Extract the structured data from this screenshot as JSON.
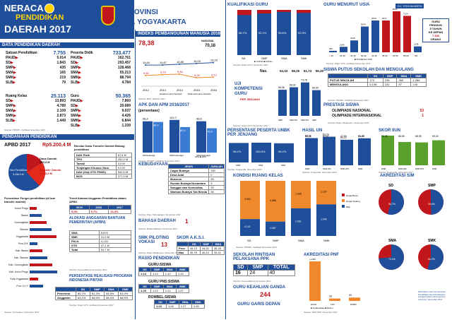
{
  "header": {
    "l1": "NERACA",
    "l2": "PENDIDIKAN",
    "l3": "DAERAH 2017",
    "prov_label": "PROVINSI",
    "prov_name": "D.I. YOGYAKARTA"
  },
  "data_pend": {
    "title": "DATA PENDIDIKAN DAERAH",
    "satuan": {
      "label": "Satuan Pendidikan",
      "total": "7.755",
      "rows": [
        [
          "PAUD",
          "5.014"
        ],
        [
          "SD",
          "1.843"
        ],
        [
          "SMP",
          "435"
        ],
        [
          "SMA",
          "165"
        ],
        [
          "SMK",
          "219"
        ],
        [
          "SLB",
          "79"
        ]
      ]
    },
    "peserta": {
      "label": "Peserta Didik",
      "total": "733.477",
      "rows": [
        [
          "PAUD",
          "162.761"
        ],
        [
          "SD",
          "293.457"
        ],
        [
          "SMP",
          "128.468"
        ],
        [
          "SMA",
          "55.213"
        ],
        [
          "SMK",
          "88.794"
        ],
        [
          "SLB",
          "4.784"
        ]
      ]
    },
    "ruang": {
      "label": "Ruang Kelas",
      "total": "25.113",
      "rows": [
        [
          "SD",
          "13.893"
        ],
        [
          "SMP",
          "4.789"
        ],
        [
          "SMA",
          "2.109"
        ],
        [
          "SMK",
          "2.873"
        ],
        [
          "SLB",
          "1.449"
        ]
      ]
    },
    "guru": {
      "label": "Guru",
      "total": "50.365",
      "rows": [
        [
          "PAUD",
          "7.860"
        ],
        [
          "SD",
          "20.689"
        ],
        [
          "SMP",
          "9.037"
        ],
        [
          "SMA",
          "4.426"
        ],
        [
          "SMK",
          "6.844"
        ],
        [
          "SLB",
          "1.339"
        ]
      ]
    },
    "source": "Sumber: PDSPK, Verifikasi November 2017"
  },
  "ipm": {
    "title": "INDEKS PEMBANGUNAN MANUSIA 2016",
    "value": "78,38",
    "nasional_label": "NASIONAL",
    "nasional": "70,18",
    "years": [
      "2012",
      "2013",
      "2014",
      "2015",
      "2016"
    ],
    "series_top": [
      "14,64",
      "14,67",
      "14,85",
      "15,03",
      "15,23"
    ],
    "series_mid": [
      "9,52",
      "9,73",
      "9,84",
      "9,00",
      "9,12"
    ],
    "legend": [
      "Harapan Lama Sekolah",
      "Rata-rata Lama Sekolah"
    ],
    "source": "Sumber: BPS, Oktober 2017"
  },
  "apk": {
    "title": "APK DAN APM 2016/2017",
    "subtitle": "(persentase)",
    "groups": [
      "SD/sederajat",
      "SMP/sederajat",
      "SMA/sederajat"
    ],
    "apk": [
      "98,4",
      "102,7",
      "98,6"
    ],
    "apm": [
      "96,4",
      "80,3",
      "76,5"
    ],
    "legend": [
      "APK",
      "APM"
    ],
    "source": "Sumber: PDSPK, Verifikasi November 2017"
  },
  "kebudayaan": {
    "title": "KEBUDAYAAN",
    "headers": [
      "JENIS",
      "JUMLAH"
    ],
    "rows": [
      [
        "Cagar Budaya",
        "150"
      ],
      [
        "Desa Adat",
        "0"
      ],
      [
        "Museum",
        "39"
      ],
      [
        "Rumah Budaya Nusantara",
        "3"
      ],
      [
        "Sanggar dan Komunitas",
        "33"
      ],
      [
        "Warisan Budaya Tak Benda",
        "36"
      ]
    ],
    "source": "Sumber: Dijen Kebudayaan, November 2017"
  },
  "bahasa": {
    "title": "BAHASA DAERAH",
    "value": "1",
    "source": "Sumber: Badan Bahasa, November 2017"
  },
  "smk_pilot": {
    "title": "SMK PILOTING VOKASI",
    "value": "13",
    "source": "Sumber: Ditjen Dikdasmen, November 2017"
  },
  "skor_aksi": {
    "title": "SKOR A.K.S.I.",
    "headers": [
      "",
      "SD",
      "SMP",
      "SMA"
    ],
    "rows": [
      [
        "Prov",
        "45,13",
        "34,31",
        "36,26"
      ],
      [
        "Nas",
        "45,78",
        "40,14",
        "32,41"
      ]
    ],
    "source": "Sumber: Puspendik, November 2017"
  },
  "rasio": {
    "title": "RASIO PENDIDIKAN",
    "guru_siswa": "GURU:SISWA",
    "gpns": "GURU PNS:SISWA",
    "rombel": "ROMBEL:SISWA",
    "levels": [
      "SD",
      "SMP",
      "SMA",
      "SMK"
    ],
    "gs": [
      "1:14",
      "1:14",
      "1:12",
      "1:13"
    ],
    "gp": [
      "1:25",
      "1:22",
      "1:21",
      "1:27"
    ],
    "rs": [
      "1:22",
      "1:28",
      "1:27",
      "1:26"
    ]
  },
  "kualifikasi": {
    "title": "KUALIFIKASI GURU",
    "levels": [
      "SD",
      "SMP",
      "SMA",
      "SMK"
    ],
    "values": [
      "88,7%",
      "92,1%",
      "95,6%",
      "93,3%"
    ],
    "legend": [
      "<D4/S1",
      "D4/S1+"
    ],
    "source": "Sumber: Ditjen GTK, November 2017"
  },
  "usia": {
    "title": "GURU MENURUT USIA",
    "tag": "D.I. YOGYAKARTA",
    "cats": [
      "< 26",
      "26-30",
      "31-35",
      "36-40",
      "41-45",
      "46-50",
      "51-55",
      "56-60",
      ">60"
    ],
    "bars": [
      290,
      1066,
      2318,
      5034,
      6219,
      6217,
      8016,
      7124,
      1148
    ],
    "legend": [
      "PNS",
      "Non PNS"
    ],
    "note": [
      "GURU",
      "PENSIUN",
      "5 TAHUN",
      "KE DEPAN",
      "7.336",
      "ORANG"
    ],
    "source": "Sumber: Ditjen GTK, Verifikasi November 2017"
  },
  "un": {
    "title": "",
    "nas_label": "Nas.",
    "nas": [
      "54,33",
      "58,25",
      "61,74",
      "59,30"
    ],
    "prov": [
      "66,36",
      "68,92",
      "73,78",
      "66,00"
    ],
    "levels": [
      "SMP",
      "SMA IPA",
      "SMA IPS",
      "SMK"
    ],
    "judul": [
      "UJI",
      "KOMPETENSI",
      "GURU"
    ],
    "sub": "PER JENJANG",
    "source": "Sumber: Ditjen GTK, November 2017"
  },
  "putus": {
    "title": "SISWA PUTUS SEKOLAH DAN MENGULANG",
    "headers": [
      "SD",
      "SMP",
      "SMA",
      "SMK"
    ],
    "rows": [
      [
        "PUTUS SEKOLAH",
        "170",
        "239",
        "260",
        "1.288"
      ],
      [
        "MENGULANG",
        "5.198",
        "232",
        "57",
        "145"
      ]
    ],
    "source": "Sumber: PDSPK, Verifikasi November 2017"
  },
  "prestasi": {
    "title": "PRESTASI SISWA",
    "rows": [
      [
        "OLIMPIADE NASIONAL",
        "53"
      ],
      [
        "OLIMPIADE INTERNASIONAL",
        "1"
      ]
    ],
    "source": "Sumber: Ditjen Dikdasmen, November 2017"
  },
  "unbk": {
    "title": "PERSENTASE PESERTA UNBK PER JENJANG",
    "levels": [
      "SMP",
      "SMA",
      "SMK"
    ],
    "values": [
      "98,2%",
      "100,0%",
      "96,2%"
    ],
    "source": "Sumber: Puspendik, November 2017"
  },
  "hasil_un": {
    "title": "HASIL UN",
    "values": [
      "54,25",
      "52,87",
      "47,59",
      "53,75"
    ],
    "values2": [
      "62,11",
      "63,70",
      "60,12",
      "61,87"
    ],
    "cats": [
      "SMP",
      "SMA IPA",
      "SMA IPS",
      "SMK"
    ],
    "source": "Sumber: Puspendik, November 2017"
  },
  "skor_iiun": {
    "title": "SKOR IIUN",
    "values": [
      "76,65",
      "66,69",
      "65,95",
      "69,34"
    ],
    "cats": [
      "SMP",
      "SMA IPA",
      "SMA IPS",
      "SMK"
    ],
    "source": "Sumber: Puspendik, November 2017"
  },
  "kondisi": {
    "title": "KONDISI RUANG KELAS",
    "levels": [
      "SD",
      "SMP",
      "SMA",
      "SMK"
    ],
    "baik": [
      "4.141",
      "1.087",
      "1.031",
      "1.549"
    ],
    "rusak": [
      "9.394",
      "3.086",
      "1.028",
      "1.157"
    ],
    "legend": [
      "Rusak Berat",
      "Rusak Sedang",
      "Baik"
    ],
    "source": "Sumber: PDSPK, Verifikasi November 2017"
  },
  "akreditasi_sm": {
    "title": "AKREDITASI S/M",
    "groups": [
      "SD",
      "SMP",
      "SMA",
      "SMK"
    ],
    "a_pct": [
      "54,7%",
      "49,6%",
      "73,3%",
      "54,2%"
    ],
    "source": "Sumber: BAN S/M, November 2017"
  },
  "pendanaan": {
    "title": "PENDANAAN PENDIDIKAN",
    "apbd": "APBD 2017",
    "apbd_val": "Rp5.200,4 M",
    "pie_labels": [
      "Non Pendidikan",
      "Dana Daerah",
      "Transfer Daerah"
    ],
    "pie_vals": [
      "3.436,9 M",
      "530,3 M",
      "1.233,2 M"
    ],
    "rincian_title": "Rincian Dana Transfer Daerah Bidang pendidikan",
    "rincian": [
      [
        "DAK Fisik",
        "67,5 M"
      ],
      [
        "TPG",
        "252,2 M"
      ],
      [
        "Tamsil",
        "4,0 M"
      ],
      [
        "Tunjangan Khusus Guru",
        "0,0 M"
      ],
      [
        "DAU (Gaji GTK PNSD)",
        "532,5 M"
      ],
      [
        "BOS",
        "377,0 M"
      ]
    ],
    "fungsi_title": "Persentase Fungsi pendidikan (di luar transfer daerah)",
    "trend_title": "Trend Alokasi Anggaran Pendidikan dalam APBD",
    "trend_years": [
      "2015",
      "2016",
      "2017"
    ],
    "trend_vals": [
      "9,0%",
      "9,7%",
      "13,4%"
    ],
    "regions": [
      "Kulon Progo",
      "Bantul",
      "Gunungkidul",
      "Sleman",
      "Yogyakarta",
      "Prov DIY",
      "Kab. Bantul",
      "Kab. Sleman",
      "Kab. Gunungkidul",
      "Kab. Kulon Progo",
      "Kota Yogyakarta",
      "Prov. D.I.Y"
    ],
    "source": "Sumber: Kemenkeu, November 2017"
  },
  "bantuan": {
    "title": "ALOKASI ANGGARAN BANTUAN PEMERINTAH (APBN)",
    "rows": [
      [
        "SMA",
        "8,8 M"
      ],
      [
        "SMK",
        "31,9 M"
      ],
      [
        "PKLK",
        "4,1 M"
      ],
      [
        "GTK",
        "47,2 M"
      ],
      [
        "Total",
        "94,7 M"
      ]
    ],
    "source": "Sumber: Kemendikbud, November 2017"
  },
  "pip": {
    "title": "PERSENTASE REALISASI PROGRAM INDONESIA PINTAR",
    "headers": [
      "SD",
      "SMP",
      "SMA",
      "SMK"
    ],
    "rows": [
      [
        "Penerima",
        "80,7%",
        "61,3%",
        "54,6%",
        "61,0%"
      ],
      [
        "Anggaran",
        "63,1%",
        "68,5%",
        "58,4%",
        "68,5%"
      ]
    ],
    "source": "Sumber: Ditjen GTK, Verifikasi November 2017"
  },
  "rintisan": {
    "title": "SEKOLAH RINTISAN PELAKSANA PPK",
    "headers": [
      "SD",
      "SMP",
      "TOTAL"
    ],
    "values": [
      "16",
      "24",
      "40"
    ],
    "source": "Sumber: Kemendikbud, November 2017"
  },
  "keahlian": {
    "title": "GURU KEAHLIAN GANDA",
    "value": "244"
  },
  "garis_depan": {
    "title": "GURU GARIS DEPAN",
    "value": ""
  },
  "akreditasi_pnf": {
    "title": "AKREDITASI PNF",
    "cats": [
      "PAUD",
      "LKP",
      "PKBM"
    ],
    "vals": [
      "1.069",
      "26",
      "53"
    ],
    "legend": [
      "Terakreditasi",
      "Belum"
    ],
    "source": "Sumber: BAN PNF, November 2017"
  },
  "footer": "Diterbitkan oleh Kementerian Pendidikan dan Kebudayaan sebagai bahan informasi dan referensi. November 2017",
  "colors": {
    "blue": "#1f4e9a",
    "red": "#c0161c",
    "orange": "#f0892b",
    "green": "#5aa02c"
  }
}
